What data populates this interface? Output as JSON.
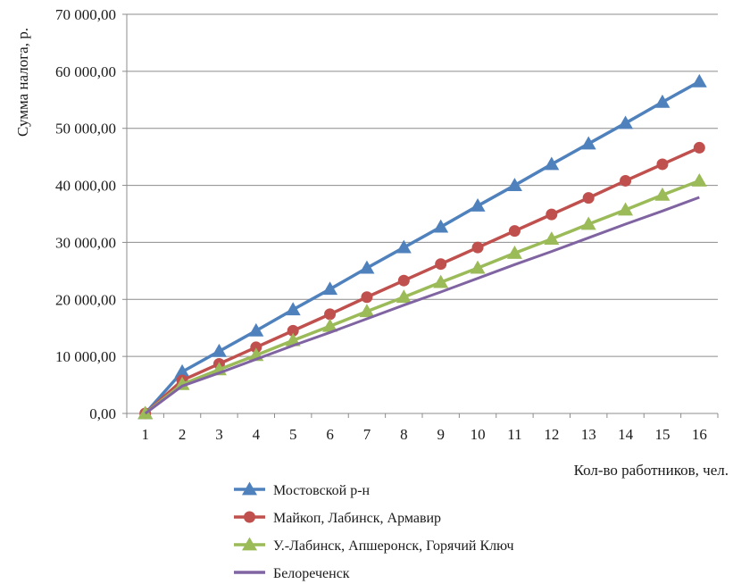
{
  "chart_data": {
    "type": "line",
    "xlabel": "Кол-во работников, чел.",
    "ylabel": "Сумма налога, р.",
    "categories": [
      "1",
      "2",
      "3",
      "4",
      "5",
      "6",
      "7",
      "8",
      "9",
      "10",
      "11",
      "12",
      "13",
      "14",
      "15",
      "16"
    ],
    "ylim": [
      0,
      70000
    ],
    "yticks": [
      0,
      10000,
      20000,
      30000,
      40000,
      50000,
      60000,
      70000
    ],
    "ytick_labels": [
      "0,00",
      "10 000,00",
      "20 000,00",
      "30 000,00",
      "40 000,00",
      "50 000,00",
      "60 000,00",
      "70 000,00"
    ],
    "grid": true,
    "legend_position": "bottom",
    "series": [
      {
        "name": "Мостовской р-н",
        "color": "#4f81bd",
        "marker": "triangle",
        "values": [
          0,
          7300,
          10900,
          14500,
          18200,
          21800,
          25500,
          29100,
          32700,
          36400,
          40000,
          43700,
          47300,
          50900,
          54600,
          58200
        ]
      },
      {
        "name": "Майкоп, Лабинск, Армавир",
        "color": "#c0504d",
        "marker": "circle",
        "values": [
          0,
          5800,
          8700,
          11600,
          14500,
          17400,
          20400,
          23300,
          26200,
          29100,
          32000,
          34900,
          37800,
          40800,
          43700,
          46600
        ]
      },
      {
        "name": "У.-Лабинск, Апшеронск, Горячий Ключ",
        "color": "#9bbb59",
        "marker": "triangle",
        "values": [
          0,
          5100,
          7700,
          10200,
          12800,
          15300,
          17900,
          20400,
          23000,
          25500,
          28100,
          30600,
          33200,
          35700,
          38300,
          40800
        ]
      },
      {
        "name": "Белореченск",
        "color": "#8064a2",
        "marker": "none",
        "values": [
          0,
          4800,
          7100,
          9500,
          11900,
          14200,
          16600,
          19000,
          21300,
          23700,
          26100,
          28400,
          30800,
          33200,
          35500,
          37900
        ]
      }
    ]
  }
}
